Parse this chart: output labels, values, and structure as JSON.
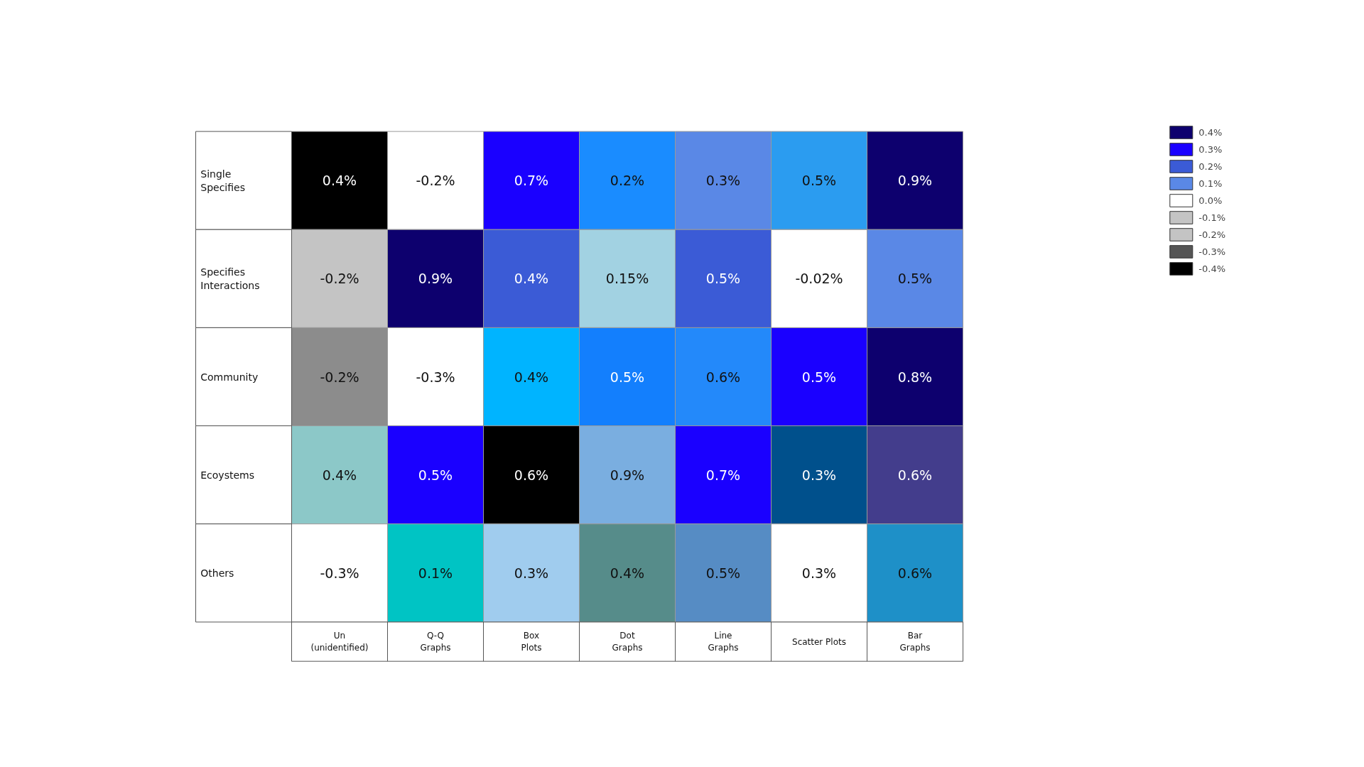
{
  "chart_data": {
    "type": "heatmap",
    "categories": [
      "Un\n(unidentified)",
      "Q-Q\nGraphs",
      "Box\nPlots",
      "Dot\nGraphs",
      "Line\nGraphs",
      "Scatter Plots",
      "Bar\nGraphs"
    ],
    "y_categories": [
      "Single\nSpecifies",
      "Specifies\nInteractions",
      "Community",
      "Ecoystems",
      "Others"
    ],
    "cells": [
      [
        0.4,
        -0.2,
        0.7,
        0.2,
        0.3,
        0.5,
        0.9
      ],
      [
        -0.2,
        0.9,
        0.4,
        0.15,
        0.5,
        -0.02,
        0.5
      ],
      [
        -0.2,
        -0.3,
        0.4,
        0.5,
        0.6,
        0.5,
        0.8
      ],
      [
        0.4,
        0.5,
        0.6,
        0.9,
        0.7,
        0.3,
        0.6
      ],
      [
        -0.3,
        0.1,
        0.3,
        0.4,
        0.5,
        0.3,
        0.6
      ]
    ],
    "cell_labels": [
      [
        "0.4%",
        "-0.2%",
        "0.7%",
        "0.2%",
        "0.3%",
        "0.5%",
        "0.9%"
      ],
      [
        "-0.2%",
        "0.9%",
        "0.4%",
        "0.15%",
        "0.5%",
        "-0.02%",
        "0.5%"
      ],
      [
        "-0.2%",
        "-0.3%",
        "0.4%",
        "0.5%",
        "0.6%",
        "0.5%",
        "0.8%"
      ],
      [
        "0.4%",
        "0.5%",
        "0.6%",
        "0.9%",
        "0.7%",
        "0.3%",
        "0.6%"
      ],
      [
        "-0.3%",
        "0.1%",
        "0.3%",
        "0.4%",
        "0.5%",
        "0.3%",
        "0.6%"
      ]
    ],
    "colors": [
      [
        "#000000",
        "#ffffff",
        "#1a00ff",
        "#1a8cff",
        "#5a88e6",
        "#2b9cf0",
        "#0d006e"
      ],
      [
        "#c4c4c4",
        "#0d006e",
        "#3b5bd6",
        "#a2d2e2",
        "#3b5bd6",
        "#ffffff",
        "#5a88e6"
      ],
      [
        "#8c8c8c",
        "#ffffff",
        "#00b4ff",
        "#137ffd",
        "#2389fa",
        "#1a00ff",
        "#0d006e"
      ],
      [
        "#8cc8c8",
        "#1a00ff",
        "#000000",
        "#7aaee0",
        "#1a00ff",
        "#00508c",
        "#433d8c"
      ],
      [
        "#ffffff",
        "#00c4c4",
        "#a0ccee",
        "#568c8a",
        "#568cc4",
        "#ffffff",
        "#1e90c8"
      ]
    ],
    "legend": "right",
    "series": [
      {
        "name": "0.4%",
        "color": "#0d006e",
        "values": [
          null,
          null,
          null,
          null,
          null,
          null,
          null
        ]
      },
      {
        "name": "0.3%",
        "color": "#1a00ff",
        "values": [
          null,
          null,
          null,
          null,
          null,
          null,
          null
        ]
      },
      {
        "name": "0.2%",
        "color": "#3b5bd6",
        "values": [
          null,
          null,
          null,
          null,
          null,
          null,
          null
        ]
      },
      {
        "name": "0.1%",
        "color": "#5a88e6",
        "values": [
          null,
          null,
          null,
          null,
          null,
          null,
          null
        ]
      },
      {
        "name": "0.0%",
        "color": "#ffffff",
        "values": [
          null,
          null,
          null,
          null,
          null,
          null,
          null
        ]
      },
      {
        "name": "-0.1%",
        "color": "#c4c4c4",
        "values": [
          null,
          null,
          null,
          null,
          null,
          null,
          null
        ]
      },
      {
        "name": "-0.2%",
        "color": "#c4c4c4",
        "values": [
          null,
          null,
          null,
          null,
          null,
          null,
          null
        ]
      },
      {
        "name": "-0.3%",
        "color": "#555555",
        "values": [
          null,
          null,
          null,
          null,
          null,
          null,
          null
        ]
      },
      {
        "name": "-0.4%",
        "color": "#000000",
        "values": [
          null,
          null,
          null,
          null,
          null,
          null,
          null
        ]
      }
    ]
  }
}
